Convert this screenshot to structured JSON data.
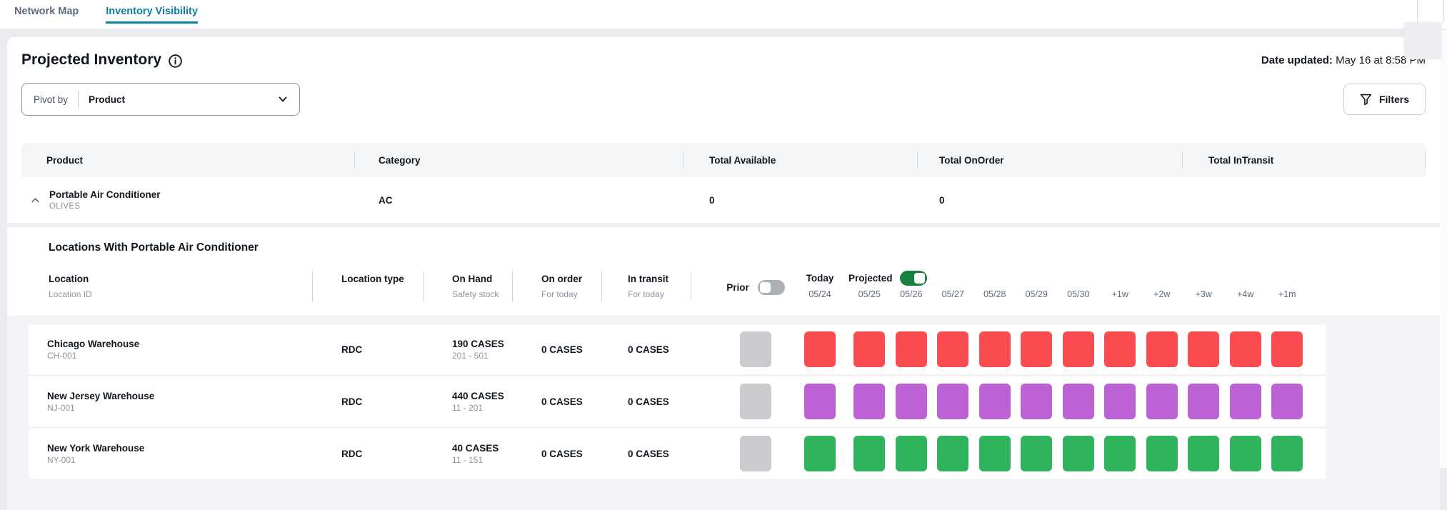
{
  "tabs": [
    {
      "label": "Network Map"
    },
    {
      "label": "Inventory Visibility"
    }
  ],
  "header": {
    "title": "Projected Inventory",
    "date_updated_label": "Date updated:",
    "date_updated_value": "May 16 at 8:58 PM"
  },
  "toolbar": {
    "pivot_label": "Pivot by",
    "pivot_value": "Product",
    "filters_label": "Filters"
  },
  "product_table": {
    "columns": [
      "Product",
      "Category",
      "Total Available",
      "Total OnOrder",
      "Total InTransit"
    ],
    "row": {
      "name": "Portable Air Conditioner",
      "subtitle": "OLIVES",
      "category": "AC",
      "total_available": "0",
      "total_onorder": "0",
      "total_intransit": ""
    }
  },
  "locations_section": {
    "title": "Locations With Portable Air Conditioner",
    "columns": {
      "location_label": "Location",
      "location_sub": "Location ID",
      "location_type_label": "Location type",
      "on_hand_label": "On Hand",
      "on_hand_sub": "Safety stock",
      "on_order_label": "On order",
      "on_order_sub": "For today",
      "in_transit_label": "In transit",
      "in_transit_sub": "For today",
      "prior_label": "Prior",
      "prior_toggle_on": false,
      "today_label": "Today",
      "today_date": "05/24",
      "projected_label": "Projected",
      "projected_toggle_on": true
    },
    "projected_dates": [
      "05/25",
      "05/26",
      "05/27",
      "05/28",
      "05/29",
      "05/30",
      "+1w",
      "+2w",
      "+3w",
      "+4w",
      "+1m"
    ],
    "prior_cell_color": "#c9cbce",
    "rows": [
      {
        "name": "Chicago Warehouse",
        "id": "CH-001",
        "type": "RDC",
        "on_hand": "190 CASES",
        "safety_stock": "201 - 501",
        "on_order": "0 CASES",
        "in_transit": "0 CASES",
        "color": "#fa4b50"
      },
      {
        "name": "New Jersey Warehouse",
        "id": "NJ-001",
        "type": "RDC",
        "on_hand": "440 CASES",
        "safety_stock": "11 - 201",
        "on_order": "0 CASES",
        "in_transit": "0 CASES",
        "color": "#bc62d5"
      },
      {
        "name": "New York Warehouse",
        "id": "NY-001",
        "type": "RDC",
        "on_hand": "40 CASES",
        "safety_stock": "11 - 151",
        "on_order": "0 CASES",
        "in_transit": "0 CASES",
        "color": "#2fb45d"
      }
    ]
  },
  "colors": {
    "tab_active": "#0d7ea3",
    "toggle_on": "#17823e",
    "cell_red": "#fa4b50",
    "cell_purple": "#bc62d5",
    "cell_green": "#2fb45d",
    "cell_prior": "#c9cbce"
  }
}
